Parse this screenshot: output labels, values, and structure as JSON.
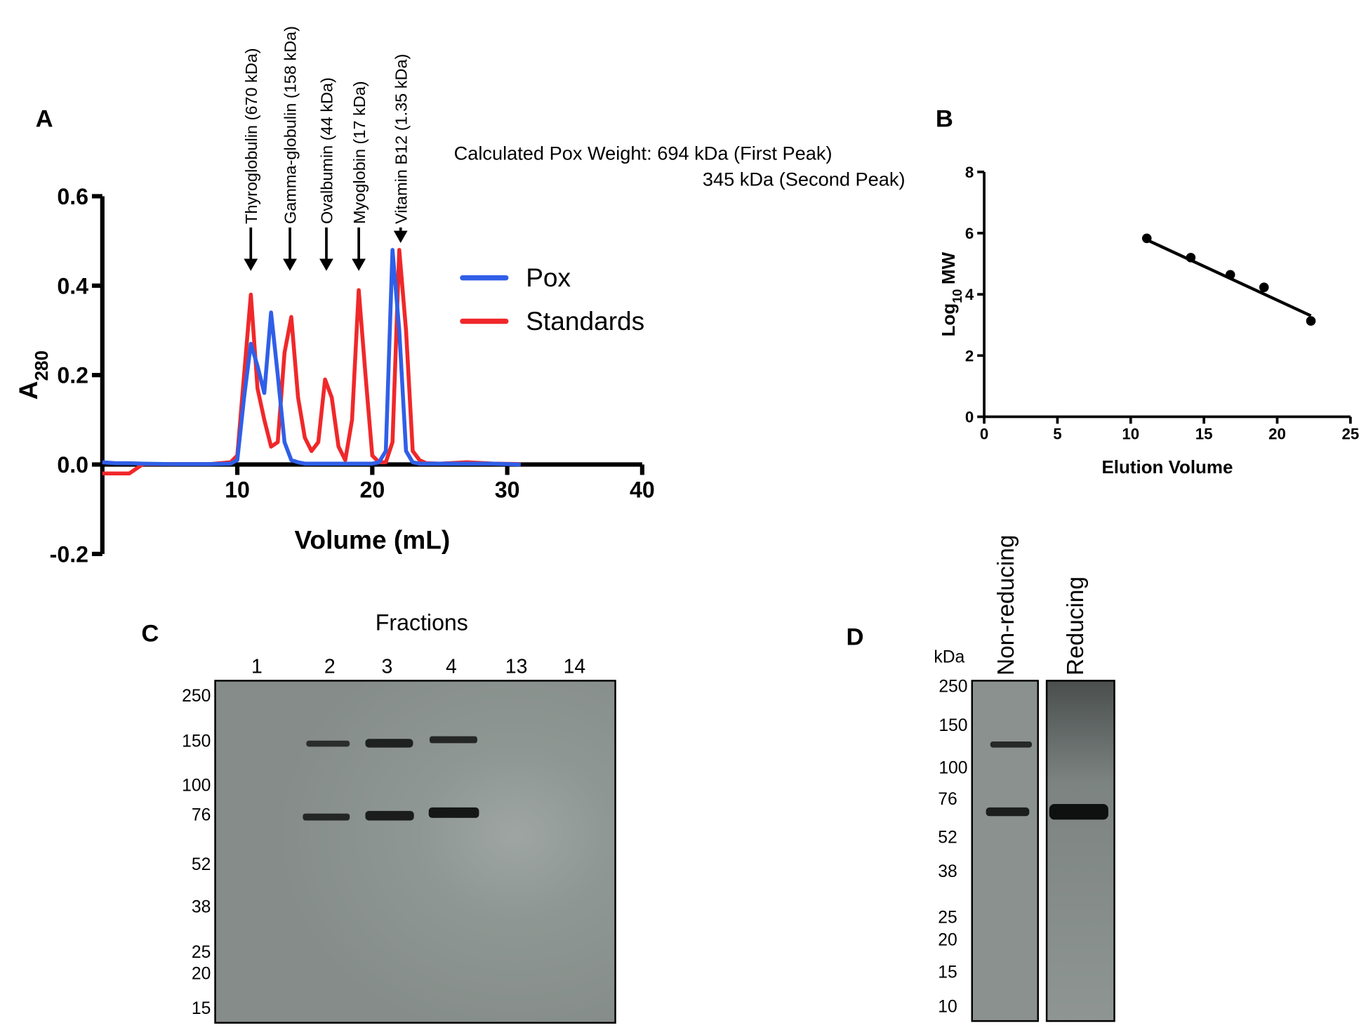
{
  "chart_data": [
    {
      "type": "line",
      "panel": "A",
      "x_label": "Volume (mL)",
      "y_label_parts": [
        "A",
        "280"
      ],
      "x": [
        0,
        1,
        2,
        3,
        5,
        8,
        9.5,
        10,
        10.5,
        11,
        11.5,
        12,
        12.5,
        13,
        13.5,
        14,
        14.5,
        15,
        15.5,
        16,
        16.5,
        17,
        17.5,
        18,
        18.5,
        19,
        19.5,
        20,
        20.5,
        21,
        21.5,
        22,
        22.5,
        23,
        23.5,
        24,
        25,
        27,
        29,
        31
      ],
      "series": [
        {
          "name": "Pox",
          "color": "#2f5fe8",
          "values": [
            0.005,
            0.003,
            0.003,
            0.002,
            0.001,
            0.001,
            0.002,
            0.01,
            0.15,
            0.27,
            0.22,
            0.16,
            0.34,
            0.2,
            0.05,
            0.01,
            0.005,
            0.002,
            0.002,
            0.002,
            0.002,
            0.002,
            0.002,
            0.002,
            0.002,
            0.002,
            0.002,
            0.002,
            0.005,
            0.03,
            0.48,
            0.3,
            0.03,
            0.005,
            0.002,
            0.002,
            0.002,
            0.002,
            0.002,
            0
          ]
        },
        {
          "name": "Standards",
          "color": "#f0282a",
          "values": [
            -0.02,
            -0.02,
            -0.02,
            0.001,
            0.001,
            0.001,
            0.005,
            0.02,
            0.2,
            0.38,
            0.17,
            0.1,
            0.04,
            0.05,
            0.25,
            0.33,
            0.15,
            0.06,
            0.03,
            0.05,
            0.19,
            0.15,
            0.04,
            0.01,
            0.1,
            0.39,
            0.2,
            0.02,
            0.005,
            0.005,
            0.05,
            0.48,
            0.3,
            0.03,
            0.01,
            0.003,
            0.002,
            0.005,
            0.002,
            0.001
          ]
        }
      ],
      "xlim": [
        0,
        40
      ],
      "xticks": [
        10,
        20,
        30,
        40
      ],
      "ylim": [
        -0.2,
        0.6
      ],
      "yticks": [
        {
          "value": -0.2,
          "label": "-0.2"
        },
        {
          "value": 0,
          "label": "0.0"
        },
        0.2,
        0.4,
        0.6
      ],
      "annotations": [
        {
          "text": "Thyroglobulin (670 kDa)",
          "x": 11
        },
        {
          "text": "Gamma-globulin (158 kDa)",
          "x": 13.9
        },
        {
          "text": "Ovalbumin (44 kDa)",
          "x": 16.6
        },
        {
          "text": "Myoglobin (17 kDa)",
          "x": 19
        },
        {
          "text": "Vitamin B12 (1.35 kDa)",
          "x": 22.1
        }
      ],
      "notes": [
        "Calculated Pox Weight: 694 kDa (First Peak)",
        "345 kDa (Second Peak)"
      ]
    },
    {
      "type": "scatter",
      "panel": "B",
      "x_label": "Elution Volume",
      "y_label_parts": [
        "Log",
        "10",
        "MW"
      ],
      "x": [
        11.1,
        14.1,
        16.8,
        19.1,
        22.3
      ],
      "values": [
        5.83,
        5.2,
        4.64,
        4.23,
        3.13
      ],
      "color": "#000000",
      "fit_line": {
        "x": [
          11.1,
          22.3
        ],
        "y": [
          5.78,
          3.3
        ]
      },
      "xlim": [
        0,
        25
      ],
      "xticks": [
        0,
        5,
        10,
        15,
        20,
        25
      ],
      "ylim": [
        0,
        8
      ],
      "yticks": [
        0,
        2,
        4,
        6,
        8
      ]
    }
  ],
  "gels": [
    {
      "panel": "C",
      "title": "Fractions",
      "lanes": [
        "1",
        "2",
        "3",
        "4",
        "13",
        "14"
      ],
      "markers": [
        "250",
        "150",
        "100",
        "76",
        "52",
        "38",
        "25",
        "20",
        "15"
      ]
    },
    {
      "panel": "D",
      "unit": "kDa",
      "lanes": [
        "Non-reducing",
        "Reducing"
      ],
      "markers": [
        "250",
        "150",
        "100",
        "76",
        "52",
        "38",
        "25",
        "20",
        "15",
        "10"
      ]
    }
  ]
}
